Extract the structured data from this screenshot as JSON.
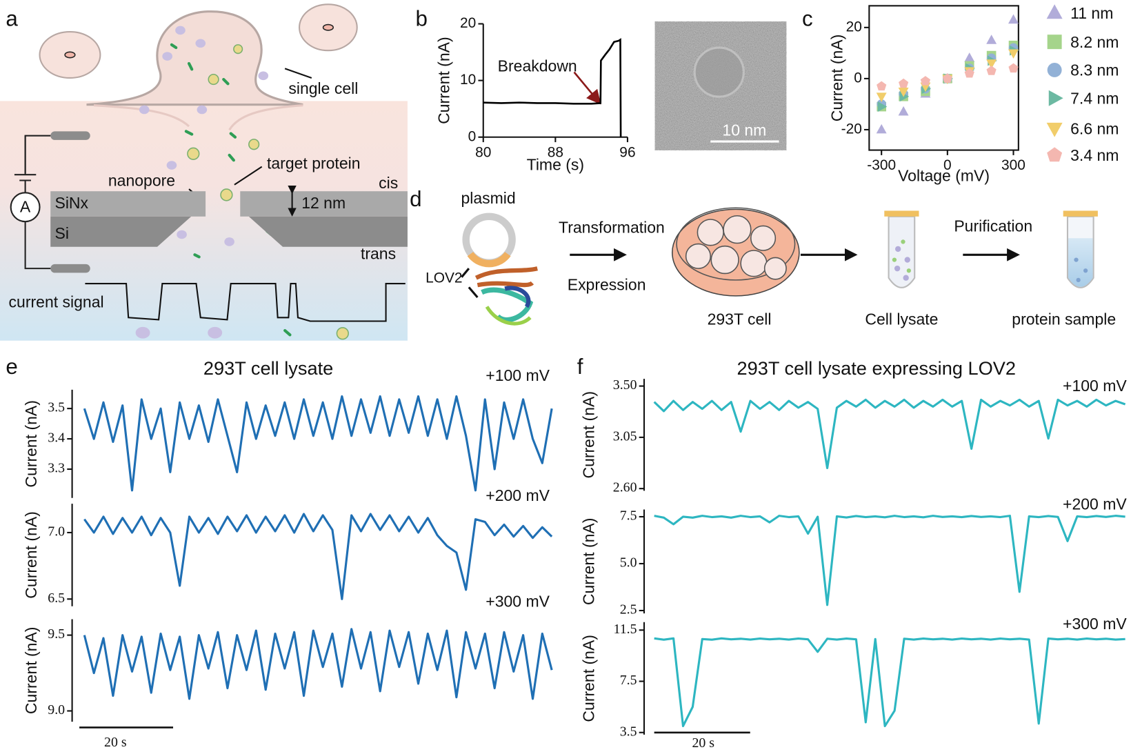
{
  "panel_labels": [
    "a",
    "b",
    "c",
    "d",
    "e",
    "f"
  ],
  "diagram_a": {
    "single_cell": "single cell",
    "target_protein": "target protein",
    "nanopore": "nanopore",
    "cis": "cis",
    "sinx": "SiNx",
    "thickness": "12 nm",
    "si": "Si",
    "trans": "trans",
    "current_signal": "current signal",
    "ammeter": "A"
  },
  "micrograph": {
    "scale_bar": "10 nm"
  },
  "diagram_d": {
    "plasmid": "plasmid",
    "lov2": "LOV2",
    "transformation": "Transformation",
    "expression": "Expression",
    "cell": "293T cell",
    "lysate": "Cell lysate",
    "purification": "Purification",
    "sample": "protein sample"
  },
  "panel_e": {
    "title": "293T cell lysate",
    "scale_bar": "20 s"
  },
  "panel_f": {
    "title": "293T cell lysate expressing LOV2",
    "scale_bar": "20 s"
  },
  "chart_data": [
    {
      "type": "line",
      "x_label": "Time (s)",
      "y_label": "Current (nA)",
      "annotation": "Breakdown",
      "color": "#000000",
      "x": [
        80,
        82,
        84,
        86,
        88,
        90,
        92,
        93,
        93.05,
        93.5,
        94,
        94.5,
        95,
        95.2,
        95.25
      ],
      "values": [
        6.1,
        6,
        6.1,
        6,
        6,
        5.9,
        5.9,
        6,
        13.5,
        14.5,
        15.5,
        16.8,
        17,
        17.2,
        0
      ],
      "xlim": [
        80,
        96
      ],
      "ylim": [
        0,
        20
      ],
      "xticks": [
        80,
        88,
        96
      ],
      "yticks": [
        0,
        10,
        20
      ]
    },
    {
      "type": "scatter",
      "x_label": "Voltage (mV)",
      "y_label": "Current (nA)",
      "x": [
        -300,
        -200,
        -100,
        0,
        100,
        200,
        300
      ],
      "xlim": [
        -356,
        323
      ],
      "ylim": [
        -28,
        28.5
      ],
      "xticks": [
        -300,
        0,
        300
      ],
      "yticks": [
        -20,
        0,
        20
      ],
      "series": [
        {
          "name": "11 nm",
          "color": "#b1acd9",
          "marker": "triangle-up",
          "values": [
            -20,
            -13,
            -6,
            0,
            8,
            15,
            23
          ]
        },
        {
          "name": "8.2 nm",
          "color": "#a5d48b",
          "marker": "square",
          "values": [
            -11,
            -7,
            -5,
            0,
            5,
            9,
            13
          ]
        },
        {
          "name": "8.3 nm",
          "color": "#92b1d6",
          "marker": "circle",
          "values": [
            -10,
            -6,
            -4,
            0,
            4,
            8,
            12
          ]
        },
        {
          "name": "7.4 nm",
          "color": "#6cb9a2",
          "marker": "triangle-right",
          "values": [
            -11,
            -7,
            -4,
            0,
            4,
            7,
            11
          ]
        },
        {
          "name": "6.6 nm",
          "color": "#f1cd6a",
          "marker": "triangle-down",
          "values": [
            -7,
            -5,
            -3,
            0,
            3,
            6,
            10
          ]
        },
        {
          "name": "3.4 nm",
          "color": "#f4b7b0",
          "marker": "pentagon",
          "values": [
            -3,
            -2,
            -1,
            0,
            2,
            3,
            4
          ]
        }
      ]
    },
    {
      "type": "trace",
      "y_label": "Current (nA)",
      "annotation": "+100 mV",
      "color": "#1f6fb4",
      "ylim": [
        3.205,
        3.562
      ],
      "yticks": [
        3.3,
        3.4,
        3.5
      ],
      "values": [
        3.5,
        3.4,
        3.52,
        3.39,
        3.51,
        3.23,
        3.53,
        3.4,
        3.5,
        3.29,
        3.52,
        3.4,
        3.51,
        3.39,
        3.53,
        3.41,
        3.29,
        3.52,
        3.4,
        3.51,
        3.41,
        3.52,
        3.4,
        3.53,
        3.41,
        3.52,
        3.4,
        3.54,
        3.41,
        3.53,
        3.42,
        3.54,
        3.41,
        3.53,
        3.42,
        3.54,
        3.41,
        3.53,
        3.4,
        3.54,
        3.41,
        3.23,
        3.53,
        3.3,
        3.52,
        3.4,
        3.53,
        3.4,
        3.32,
        3.5
      ]
    },
    {
      "type": "trace",
      "y_label": "Current (nA)",
      "annotation": "+200 mV",
      "color": "#1f6fb4",
      "ylim": [
        6.446,
        7.217
      ],
      "yticks": [
        {
          "value": 6.5,
          "label": "6.5"
        },
        {
          "value": 7,
          "label": "7.0"
        }
      ],
      "values": [
        7.1,
        7.0,
        7.12,
        6.99,
        7.11,
        7.0,
        7.12,
        6.98,
        7.11,
        7.0,
        6.6,
        7.12,
        7.0,
        7.11,
        6.99,
        7.12,
        7.01,
        7.13,
        7.0,
        7.12,
        7.01,
        7.13,
        7.0,
        7.14,
        7.01,
        7.13,
        7.02,
        6.5,
        7.13,
        7.01,
        7.14,
        7.02,
        7.13,
        7.01,
        7.12,
        7.0,
        7.11,
        6.98,
        6.9,
        6.85,
        6.57,
        7.1,
        7.08,
        6.98,
        7.06,
        6.97,
        7.05,
        6.96,
        7.04,
        6.97
      ]
    },
    {
      "type": "trace",
      "y_label": "Current (nA)",
      "annotation": "+300 mV",
      "color": "#1f6fb4",
      "ylim": [
        8.929,
        9.605
      ],
      "yticks": [
        {
          "value": 9,
          "label": "9.0"
        },
        9.5
      ],
      "values": [
        9.5,
        9.25,
        9.48,
        9.1,
        9.5,
        9.26,
        9.49,
        9.12,
        9.51,
        9.27,
        9.49,
        9.08,
        9.5,
        9.28,
        9.52,
        9.15,
        9.5,
        9.27,
        9.53,
        9.14,
        9.51,
        9.28,
        9.52,
        9.1,
        9.53,
        9.29,
        9.51,
        9.16,
        9.54,
        9.28,
        9.52,
        9.13,
        9.53,
        9.29,
        9.52,
        9.18,
        9.51,
        9.27,
        9.53,
        9.09,
        9.52,
        9.28,
        9.51,
        9.15,
        9.52,
        9.26,
        9.5,
        9.08,
        9.51,
        9.27
      ]
    },
    {
      "type": "trace",
      "y_label": "Current (nA)",
      "annotation": "+100 mV",
      "color": "#2db6c1",
      "ylim": [
        2.581,
        3.563
      ],
      "yticks": [
        {
          "value": 2.6,
          "label": "2.60"
        },
        {
          "value": 3.05,
          "label": "3.05"
        },
        {
          "value": 3.5,
          "label": "3.50"
        }
      ],
      "values": [
        3.36,
        3.28,
        3.37,
        3.29,
        3.36,
        3.3,
        3.37,
        3.29,
        3.36,
        3.1,
        3.37,
        3.3,
        3.36,
        3.29,
        3.37,
        3.31,
        3.36,
        3.3,
        2.78,
        3.31,
        3.37,
        3.32,
        3.38,
        3.31,
        3.37,
        3.32,
        3.38,
        3.31,
        3.37,
        3.32,
        3.38,
        3.32,
        3.37,
        2.95,
        3.38,
        3.32,
        3.37,
        3.33,
        3.38,
        3.32,
        3.37,
        3.04,
        3.38,
        3.33,
        3.37,
        3.32,
        3.38,
        3.33,
        3.37,
        3.34
      ]
    },
    {
      "type": "trace",
      "y_label": "Current (nA)",
      "annotation": "+200 mV",
      "color": "#2db6c1",
      "ylim": [
        2.346,
        7.885
      ],
      "yticks": [
        2.5,
        {
          "value": 5,
          "label": "5.0"
        },
        7.5
      ],
      "values": [
        7.55,
        7.45,
        7.1,
        7.5,
        7.45,
        7.55,
        7.48,
        7.52,
        7.45,
        7.55,
        7.48,
        7.52,
        7.2,
        7.55,
        7.48,
        7.52,
        6.6,
        7.5,
        2.8,
        7.52,
        7.46,
        7.54,
        7.48,
        7.52,
        7.47,
        7.55,
        7.48,
        7.52,
        7.47,
        7.55,
        7.49,
        7.52,
        7.48,
        7.54,
        7.49,
        7.52,
        7.48,
        7.55,
        3.5,
        7.52,
        7.48,
        7.54,
        7.49,
        6.2,
        7.52,
        7.48,
        7.54,
        7.49,
        7.55,
        7.5
      ]
    },
    {
      "type": "trace",
      "y_label": "Current (nA)",
      "annotation": "+300 mV",
      "color": "#2db6c1",
      "ylim": [
        3.33,
        12.125
      ],
      "yticks": [
        3.5,
        7.5,
        11.5
      ],
      "values": [
        10.85,
        10.75,
        10.85,
        4.0,
        5.5,
        10.8,
        10.75,
        10.85,
        10.78,
        10.82,
        10.76,
        10.84,
        10.78,
        10.82,
        10.76,
        10.84,
        10.78,
        9.8,
        10.82,
        10.76,
        10.84,
        10.78,
        4.3,
        10.8,
        4.0,
        5.2,
        10.82,
        10.76,
        10.84,
        10.78,
        10.82,
        10.76,
        10.84,
        10.78,
        10.82,
        10.76,
        10.84,
        10.78,
        10.82,
        10.76,
        4.2,
        10.84,
        10.78,
        10.82,
        10.76,
        10.84,
        10.78,
        10.82,
        10.76,
        10.8
      ]
    }
  ]
}
